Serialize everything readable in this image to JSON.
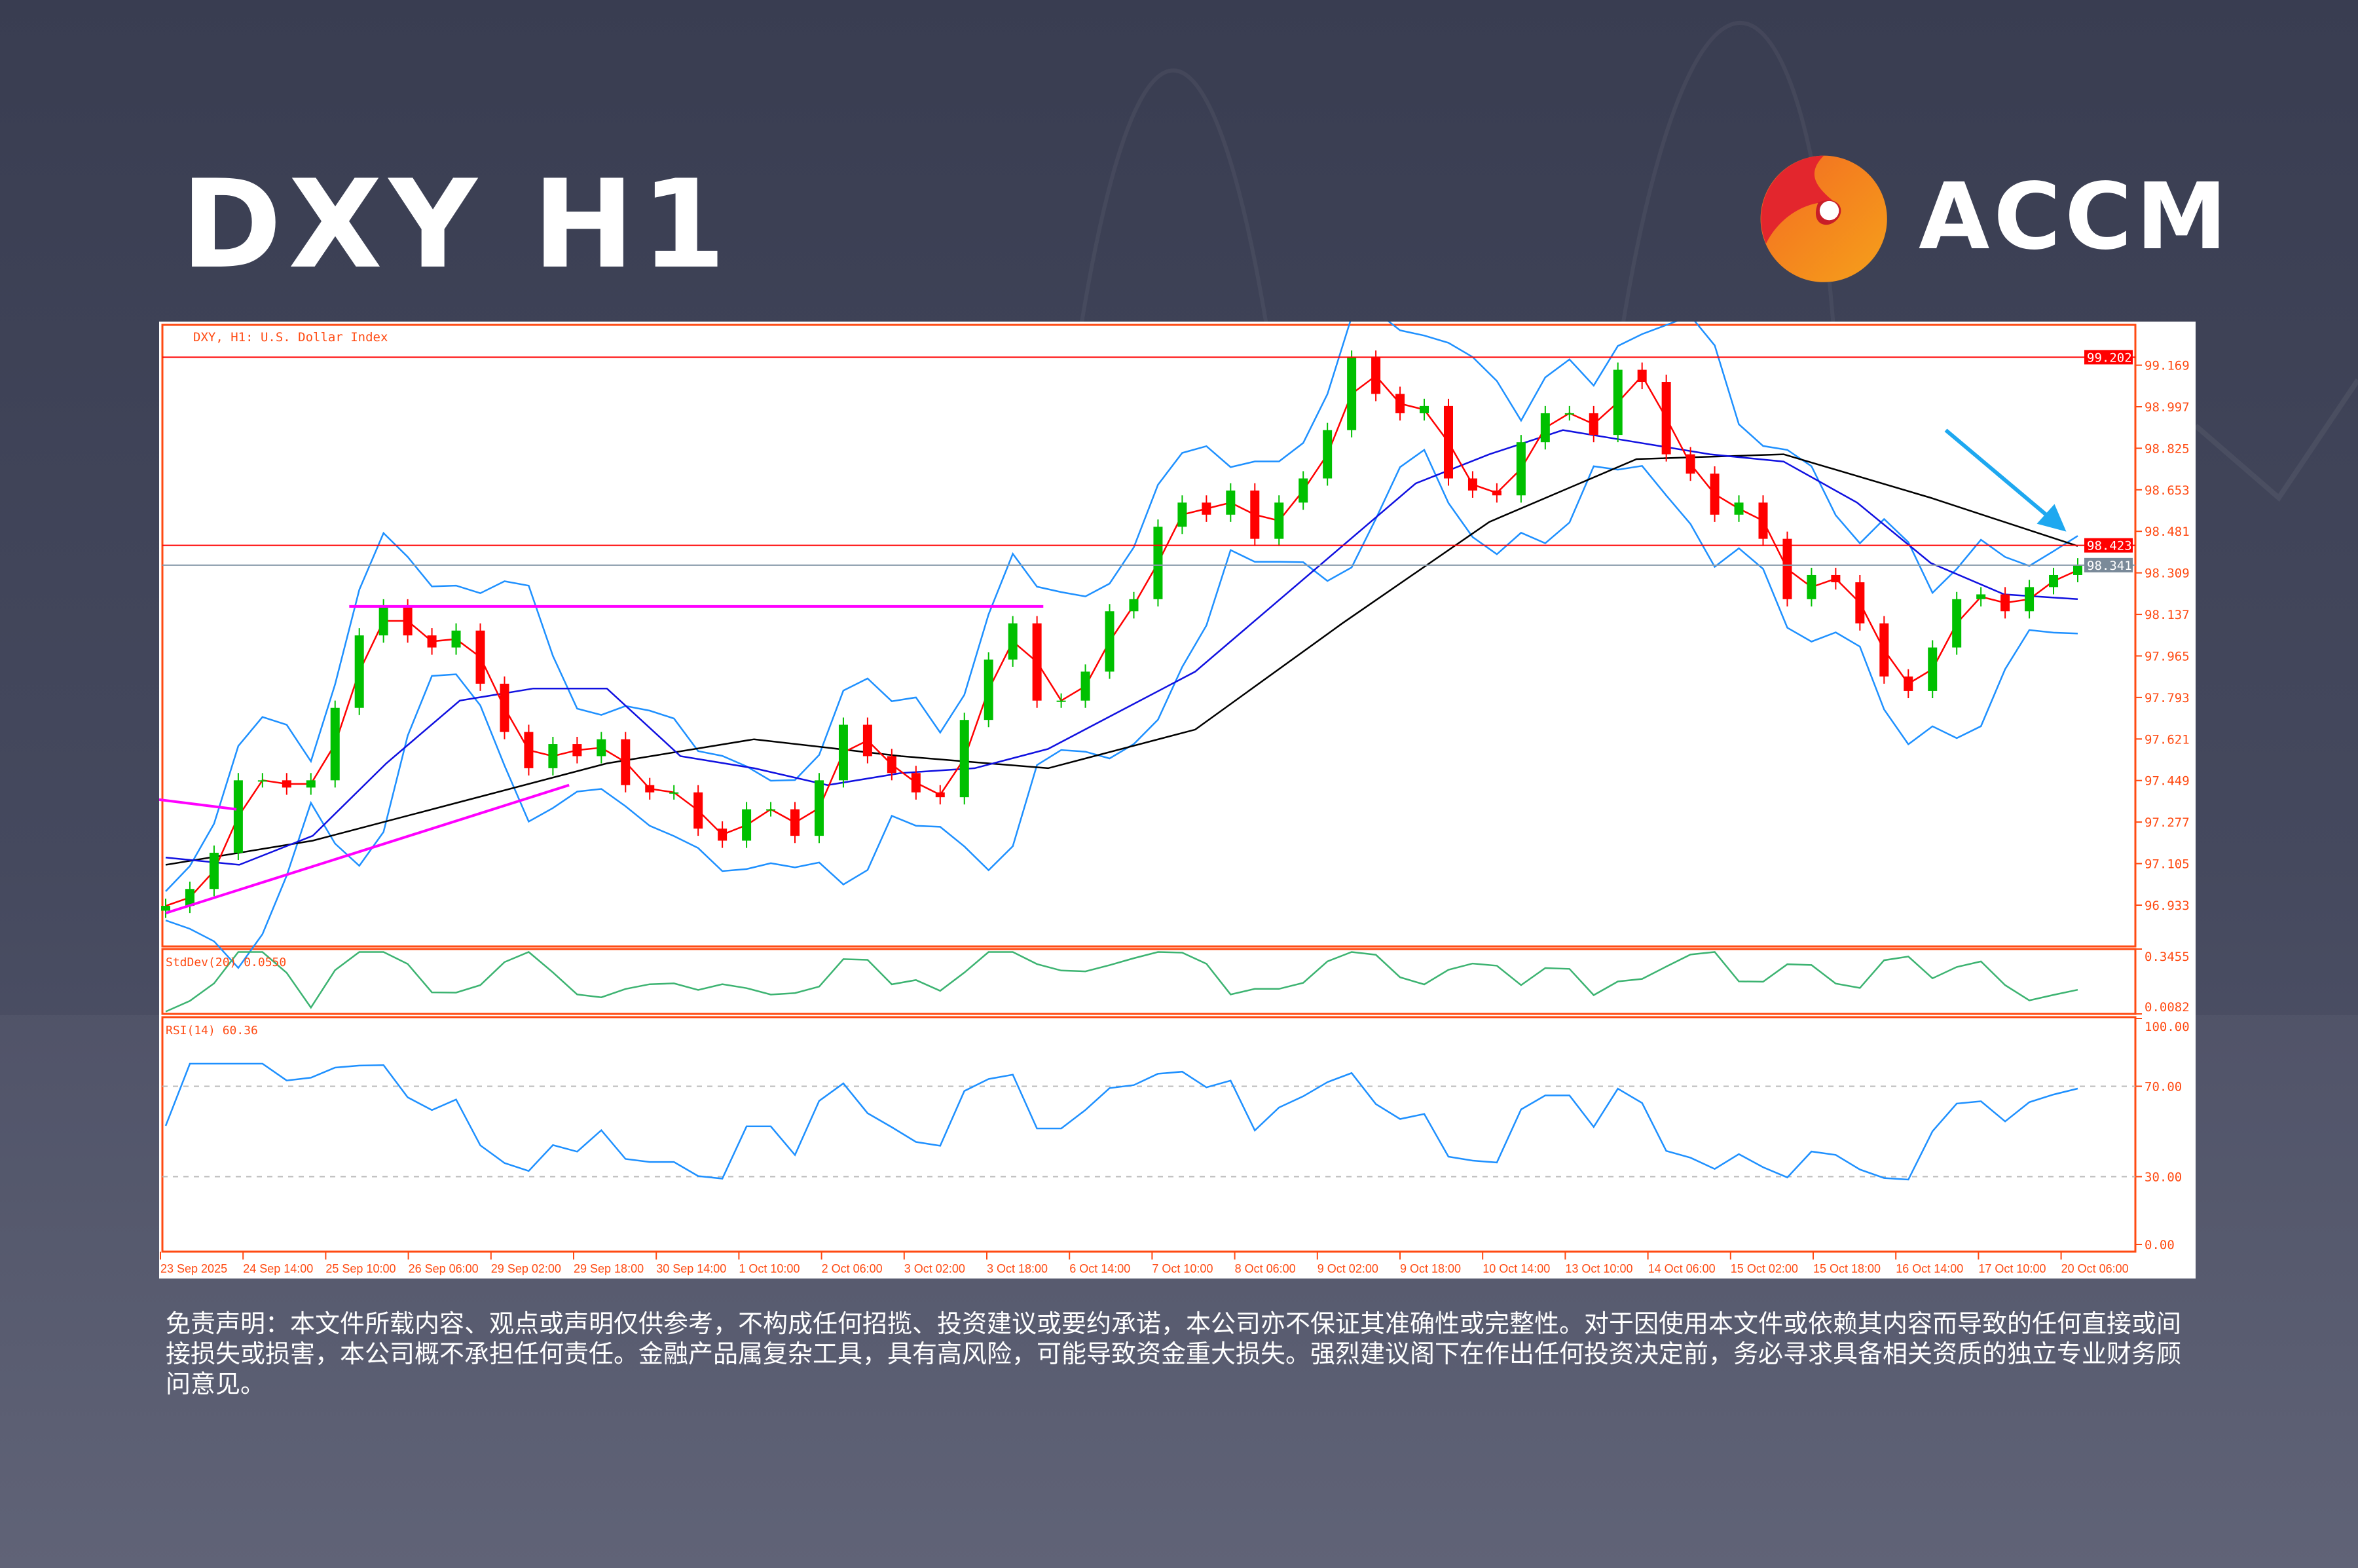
{
  "header": {
    "title": "DXY H1",
    "brand": "ACCM"
  },
  "colors": {
    "axis": "#ff4a12",
    "bull": "#00c000",
    "bear": "#ff0000",
    "ma_fast": "#ff0000",
    "ma_mid": "#1010e0",
    "ma_slow": "#000000",
    "bands": "#1e90ff",
    "stddev": "#3cb371",
    "rsi": "#1e90ff",
    "drawings": "#ff00ff",
    "arrow": "#1ea8f0",
    "last_price_tag": "#7a8a99"
  },
  "chart_data": {
    "type": "candlestick",
    "symbol_label": "DXY, H1:  U.S. Dollar Index",
    "ylim": [
      96.762,
      99.336
    ],
    "y_ticks": [
      "99.169",
      "98.997",
      "98.825",
      "98.653",
      "98.481",
      "98.309",
      "98.137",
      "97.965",
      "97.793",
      "97.621",
      "97.449",
      "97.277",
      "97.105",
      "96.933"
    ],
    "x_ticks": [
      "23 Sep 2025",
      "24 Sep 14:00",
      "25 Sep 10:00",
      "26 Sep 06:00",
      "29 Sep 02:00",
      "29 Sep 18:00",
      "30 Sep 14:00",
      "1 Oct 10:00",
      "2 Oct 06:00",
      "3 Oct 02:00",
      "3 Oct 18:00",
      "6 Oct 14:00",
      "7 Oct 10:00",
      "8 Oct 06:00",
      "9 Oct 02:00",
      "9 Oct 18:00",
      "10 Oct 14:00",
      "13 Oct 10:00",
      "14 Oct 06:00",
      "15 Oct 02:00",
      "15 Oct 18:00",
      "16 Oct 14:00",
      "17 Oct 10:00",
      "20 Oct 06:00"
    ],
    "close": [
      96.93,
      97.0,
      97.15,
      97.45,
      97.45,
      97.42,
      97.45,
      97.75,
      98.05,
      98.17,
      98.05,
      98.0,
      98.07,
      97.85,
      97.65,
      97.5,
      97.6,
      97.55,
      97.62,
      97.43,
      97.4,
      97.4,
      97.25,
      97.2,
      97.33,
      97.33,
      97.22,
      97.45,
      97.68,
      97.55,
      97.48,
      97.4,
      97.38,
      97.7,
      97.95,
      98.1,
      97.78,
      97.78,
      97.9,
      98.15,
      98.2,
      98.5,
      98.6,
      98.55,
      98.65,
      98.45,
      98.6,
      98.7,
      98.9,
      99.2,
      99.05,
      98.97,
      99.0,
      98.7,
      98.65,
      98.63,
      98.85,
      98.97,
      98.97,
      98.88,
      99.15,
      99.1,
      98.8,
      98.72,
      98.55,
      98.6,
      98.45,
      98.2,
      98.3,
      98.27,
      98.1,
      97.88,
      97.82,
      98.0,
      98.2,
      98.22,
      98.15,
      98.25,
      98.3,
      98.34
    ],
    "ma_mid": [
      97.13,
      97.1,
      97.22,
      97.52,
      97.78,
      97.83,
      97.83,
      97.55,
      97.5,
      97.43,
      97.48,
      97.5,
      97.58,
      97.74,
      97.9,
      98.16,
      98.42,
      98.68,
      98.8,
      98.9,
      98.85,
      98.8,
      98.77,
      98.6,
      98.35,
      98.22,
      98.2
    ],
    "ma_slow": [
      97.1,
      97.2,
      97.36,
      97.52,
      97.62,
      97.55,
      97.5,
      97.66,
      98.1,
      98.52,
      98.78,
      98.8,
      98.62,
      98.42
    ],
    "h_lines": [
      {
        "price": 99.202,
        "label": "99.202"
      },
      {
        "price": 98.423,
        "label": "98.423"
      }
    ],
    "last_price": {
      "price": 98.341,
      "label": "98.341"
    },
    "drawings": {
      "resistance": {
        "price": 98.17
      },
      "trendline": {
        "from": 96.9,
        "to": 97.43
      },
      "short_line": {
        "from": 97.37,
        "to": 97.33
      },
      "arrow": {
        "from": 98.9,
        "to": 98.48
      }
    },
    "stddev": {
      "label": "StdDev(20) 0.0550",
      "ticks": [
        "0.3455",
        "0.0082"
      ],
      "ylim": [
        0.0082,
        0.3455
      ]
    },
    "rsi": {
      "label": "RSI(14) 60.36",
      "ticks": [
        "100.00",
        "70.00",
        "30.00",
        "0.00"
      ],
      "levels": [
        70,
        30
      ],
      "ylim": [
        0,
        100
      ]
    }
  },
  "disclaimer": "免责声明：本文件所载内容、观点或声明仅供参考，不构成任何招揽、投资建议或要约承诺，本公司亦不保证其准确性或完整性。对于因使用本文件或依赖其内容而导致的任何直接或间接损失或损害，本公司概不承担任何责任。金融产品属复杂工具，具有高风险，可能导致资金重大损失。强烈建议阁下在作出任何投资决定前，务必寻求具备相关资质的独立专业财务顾问意见。"
}
